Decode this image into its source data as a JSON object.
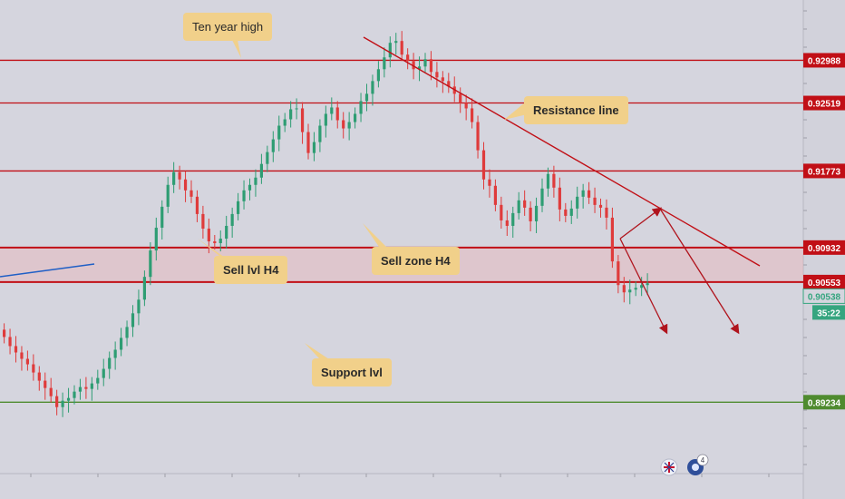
{
  "chart_data": {
    "type": "candlestick",
    "title": "",
    "xlabel": "",
    "ylabel": "",
    "ylim": [
      0.8845,
      0.9365
    ],
    "grid": false,
    "colors": {
      "up": "#2e9d73",
      "down": "#df3b3b",
      "level": "#c10f16",
      "support": "#4f8b2f",
      "sell_zone": "#e8b4b7",
      "trend": "#1f5fc6",
      "note_bg": "#f1d08a",
      "price_badge": "#35a57f"
    },
    "price_levels": [
      {
        "value": 0.92988,
        "label": "0.92988",
        "color": "#c10f16"
      },
      {
        "value": 0.92519,
        "label": "0.92519",
        "color": "#c10f16"
      },
      {
        "value": 0.91773,
        "label": "0.91773",
        "color": "#c10f16"
      },
      {
        "value": 0.90932,
        "label": "0.90932",
        "color": "#c10f16"
      },
      {
        "value": 0.90553,
        "label": "0.90553",
        "color": "#c10f16"
      },
      {
        "value": 0.89234,
        "label": "0.89234",
        "color": "#4f8b2f"
      }
    ],
    "current_price": "0.90538",
    "countdown": "35:22",
    "series": [
      {
        "values": [
          0.8995,
          0.8985,
          0.8978,
          0.8971,
          0.8965,
          0.8956,
          0.8947,
          0.8939,
          0.893,
          0.8918,
          0.8925,
          0.8928,
          0.8935,
          0.894,
          0.8938,
          0.8944,
          0.895,
          0.896,
          0.8972,
          0.8981,
          0.8994,
          0.9006,
          0.9021,
          0.9036,
          0.9061,
          0.909,
          0.9115,
          0.9138,
          0.9162,
          0.9176,
          0.9168,
          0.9156,
          0.9149,
          0.913,
          0.9114,
          0.91,
          0.9098,
          0.9103,
          0.9117,
          0.913,
          0.9144,
          0.9156,
          0.9162,
          0.917,
          0.9185,
          0.9198,
          0.9212,
          0.9227,
          0.9234,
          0.9245,
          0.9246,
          0.922,
          0.9197,
          0.9209,
          0.9227,
          0.924,
          0.9247,
          0.9233,
          0.9224,
          0.9231,
          0.924,
          0.9254,
          0.9262,
          0.9276,
          0.9289,
          0.9302,
          0.9318,
          0.932,
          0.9305,
          0.9298,
          0.9289,
          0.9292,
          0.93,
          0.9286,
          0.928,
          0.9276,
          0.927,
          0.9262,
          0.9252,
          0.9246,
          0.9231,
          0.92,
          0.9168,
          0.9161,
          0.914,
          0.9123,
          0.9117,
          0.9131,
          0.9145,
          0.9137,
          0.9122,
          0.9139,
          0.9158,
          0.9174,
          0.9159,
          0.9135,
          0.9128,
          0.9136,
          0.9149,
          0.9156,
          0.9148,
          0.914,
          0.9137,
          0.9126,
          0.9078,
          0.9052,
          0.9044,
          0.9047,
          0.9049,
          0.9052,
          0.9054
        ]
      }
    ],
    "notes": [
      {
        "text": "Ten year high"
      },
      {
        "text": "Resistance line"
      },
      {
        "text": "Sell lvl H4"
      },
      {
        "text": "Sell zone H4"
      },
      {
        "text": "Support lvl"
      }
    ]
  },
  "icons": {
    "flag_icon": "uk-flag-icon",
    "event_icon": "calendar-icon",
    "event_count": "4"
  }
}
